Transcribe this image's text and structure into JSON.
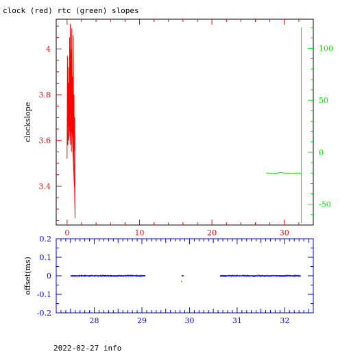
{
  "title": "clock (red) rtc (green) slopes",
  "footer": "2022-02-27 info",
  "colors": {
    "red": "#ff0000",
    "green": "#00ee00",
    "blue": "#0000ff",
    "black": "#000000"
  },
  "chart_data": [
    {
      "type": "line",
      "ylabel": "clockslope",
      "xlim": [
        -1.5,
        34
      ],
      "ylim": [
        3.23,
        4.13
      ],
      "y2lim": [
        -70,
        128
      ],
      "x_ticks": [
        0,
        10,
        20,
        30
      ],
      "y_ticks": [
        3.4,
        3.6,
        3.8,
        4
      ],
      "y_tick_labels": [
        "3.4",
        "3.6",
        "3.8",
        "4"
      ],
      "y2_ticks": [
        -50,
        0,
        50,
        100
      ],
      "y2_tick_labels": [
        "-50",
        "0",
        "50",
        "100"
      ],
      "series": [
        {
          "axis": "left",
          "color": "#ff0000",
          "x": [
            0.0,
            0.05,
            0.1,
            0.15,
            0.2,
            0.25,
            0.3,
            0.35,
            0.4,
            0.45,
            0.5,
            0.55,
            0.6,
            0.65,
            0.7,
            0.75,
            0.8,
            0.85,
            0.9,
            0.95,
            1.0,
            1.05,
            1.1,
            0.9,
            0.7,
            0.5,
            0.3,
            0.6,
            0.8,
            1.0,
            0.4,
            0.2,
            0.65,
            0.95,
            1.08
          ],
          "y": [
            3.52,
            3.97,
            3.58,
            3.85,
            3.66,
            3.92,
            3.62,
            4.05,
            3.71,
            4.11,
            3.64,
            3.95,
            3.55,
            4.09,
            3.68,
            3.88,
            3.6,
            4.06,
            3.63,
            3.8,
            3.57,
            3.7,
            3.26,
            3.62,
            3.84,
            3.58,
            3.79,
            4.0,
            3.66,
            3.4,
            3.9,
            3.6,
            3.75,
            3.55,
            3.62
          ]
        },
        {
          "axis": "right",
          "color": "#00ee00",
          "x": [
            27.5,
            28.0,
            28.5,
            29.0,
            29.5,
            30.0,
            30.5,
            31.0,
            31.5,
            32.0,
            32.3
          ],
          "y": [
            -20,
            -20,
            -20.5,
            -20,
            -19.5,
            -20,
            -20,
            -20.5,
            -20,
            -20,
            -20
          ]
        },
        {
          "axis": "right",
          "color": "#00ee00",
          "x": [
            32.35,
            32.35
          ],
          "y": [
            -68,
            120
          ]
        }
      ]
    },
    {
      "type": "scatter",
      "ylabel": "offset(ms)",
      "xlim": [
        27.2,
        32.6
      ],
      "ylim": [
        -0.2,
        0.2
      ],
      "x_ticks": [
        28,
        29,
        30,
        31,
        32
      ],
      "y_ticks": [
        -0.2,
        -0.1,
        0,
        0.1,
        0.2
      ],
      "y_tick_labels": [
        "-0.2",
        "-0.1",
        "0",
        "0.1",
        "0.2"
      ],
      "series": [
        {
          "color": "#0000ff",
          "x_start": 27.5,
          "x_end": 29.07,
          "y": 0.0,
          "spread": 0.006
        },
        {
          "color": "#0000ff",
          "x_start": 29.84,
          "x_end": 29.88,
          "y": 0.0,
          "spread": 0.004
        },
        {
          "color": "#0000ff",
          "x_start": 30.64,
          "x_end": 32.33,
          "y": 0.0,
          "spread": 0.006
        }
      ],
      "points": [
        {
          "x": 29.83,
          "y": -0.03
        }
      ]
    }
  ]
}
